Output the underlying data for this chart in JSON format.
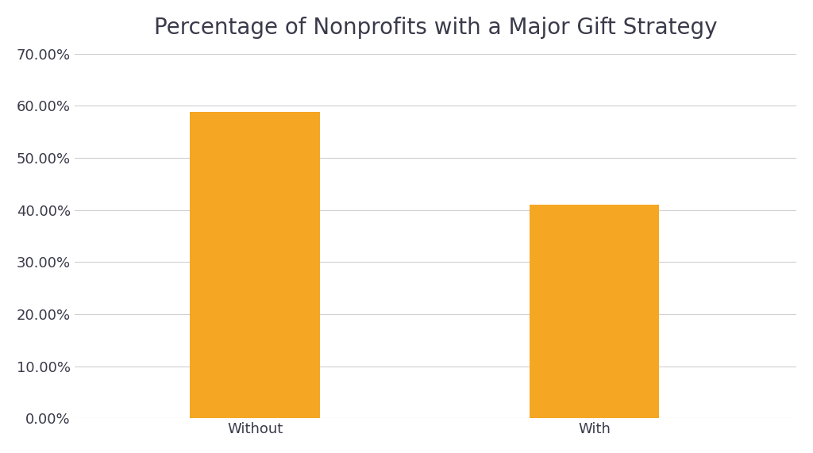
{
  "title": "Percentage of Nonprofits with a Major Gift Strategy",
  "categories": [
    "Without",
    "With"
  ],
  "values": [
    0.589,
    0.411
  ],
  "bar_color": "#F5A623",
  "background_color": "#FFFFFF",
  "ylim": [
    0,
    0.7
  ],
  "yticks": [
    0.0,
    0.1,
    0.2,
    0.3,
    0.4,
    0.5,
    0.6,
    0.7
  ],
  "title_fontsize": 20,
  "tick_fontsize": 13,
  "bar_width": 0.18,
  "grid_color": "#D0D0D0",
  "text_color": "#3a3a4a",
  "x_positions": [
    0.25,
    0.72
  ]
}
